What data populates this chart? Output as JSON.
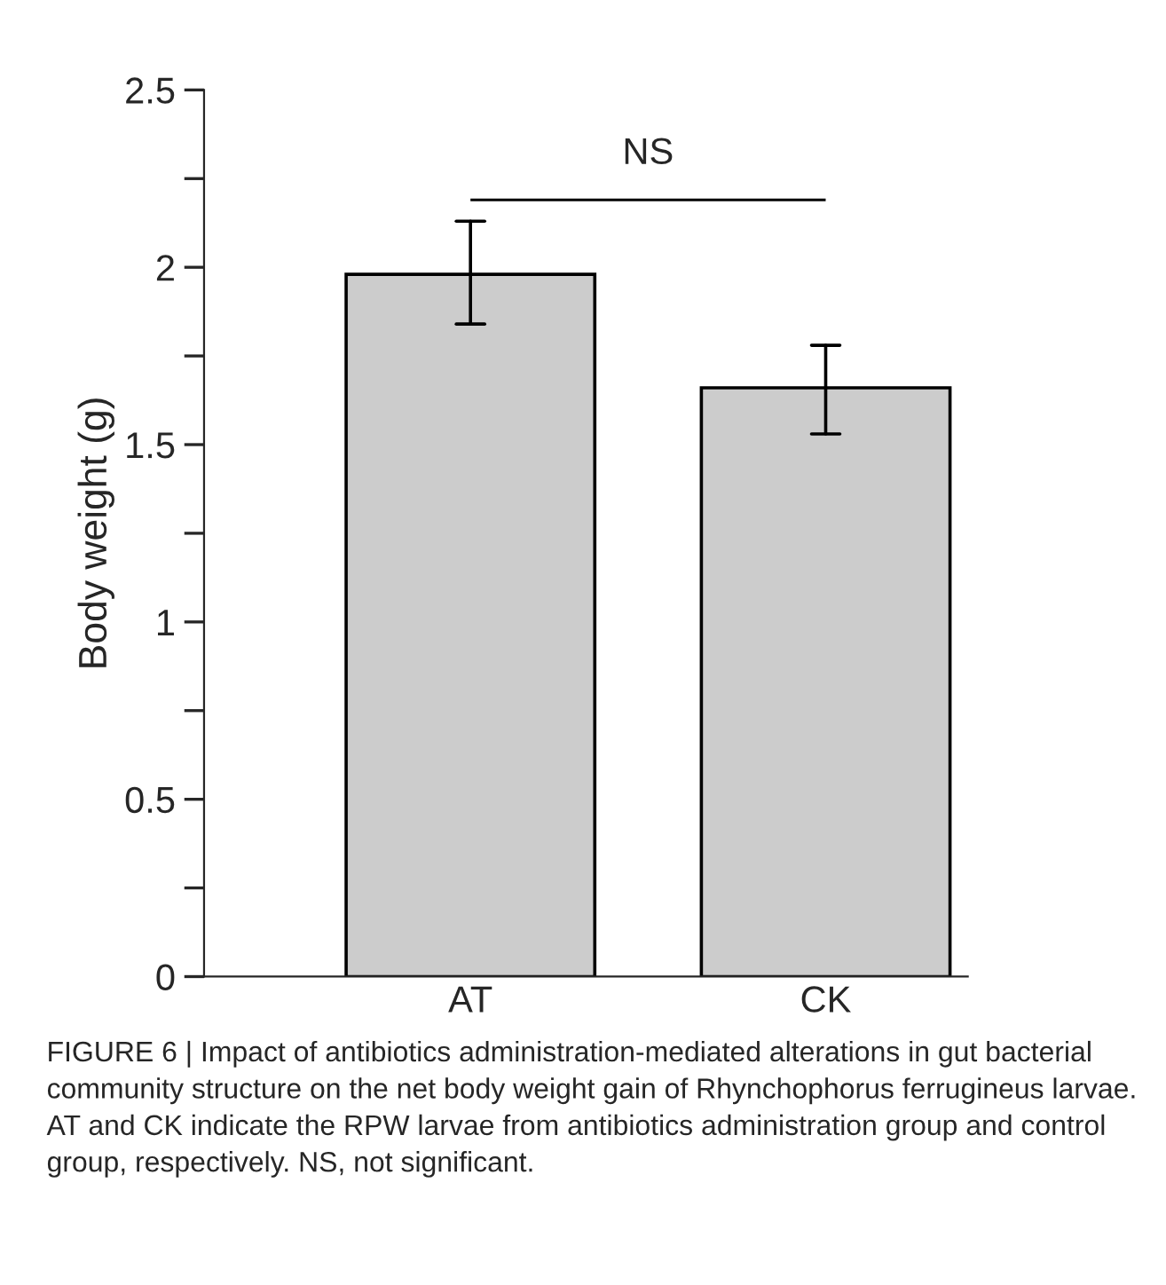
{
  "chart_data": {
    "type": "bar",
    "ylabel": "Body weight (g)",
    "categories": [
      "AT",
      "CK"
    ],
    "values": [
      1.98,
      1.66
    ],
    "errors": [
      [
        1.84,
        2.13
      ],
      [
        1.53,
        1.78
      ]
    ],
    "color": "#cccccc",
    "ylim": [
      0,
      2.5
    ],
    "yticks": [
      0,
      {
        "value": 0.25,
        "label": null
      },
      0.5,
      {
        "value": 0.75,
        "label": null
      },
      1,
      {
        "value": 1.25,
        "label": null
      },
      1.5,
      {
        "value": 1.75,
        "label": null
      },
      2,
      {
        "value": 2.25,
        "label": null
      },
      2.5
    ],
    "annotations": [
      "NS",
      "FIGURE 6 | Impact of antibiotics administration-mediated alterations in gut bacterial community structure on the net body weight gain of Rhynchophorus ferrugineus larvae. AT and CK indicate the RPW larvae from antibiotics administration group and control group, respectively. NS, not significant."
    ]
  }
}
